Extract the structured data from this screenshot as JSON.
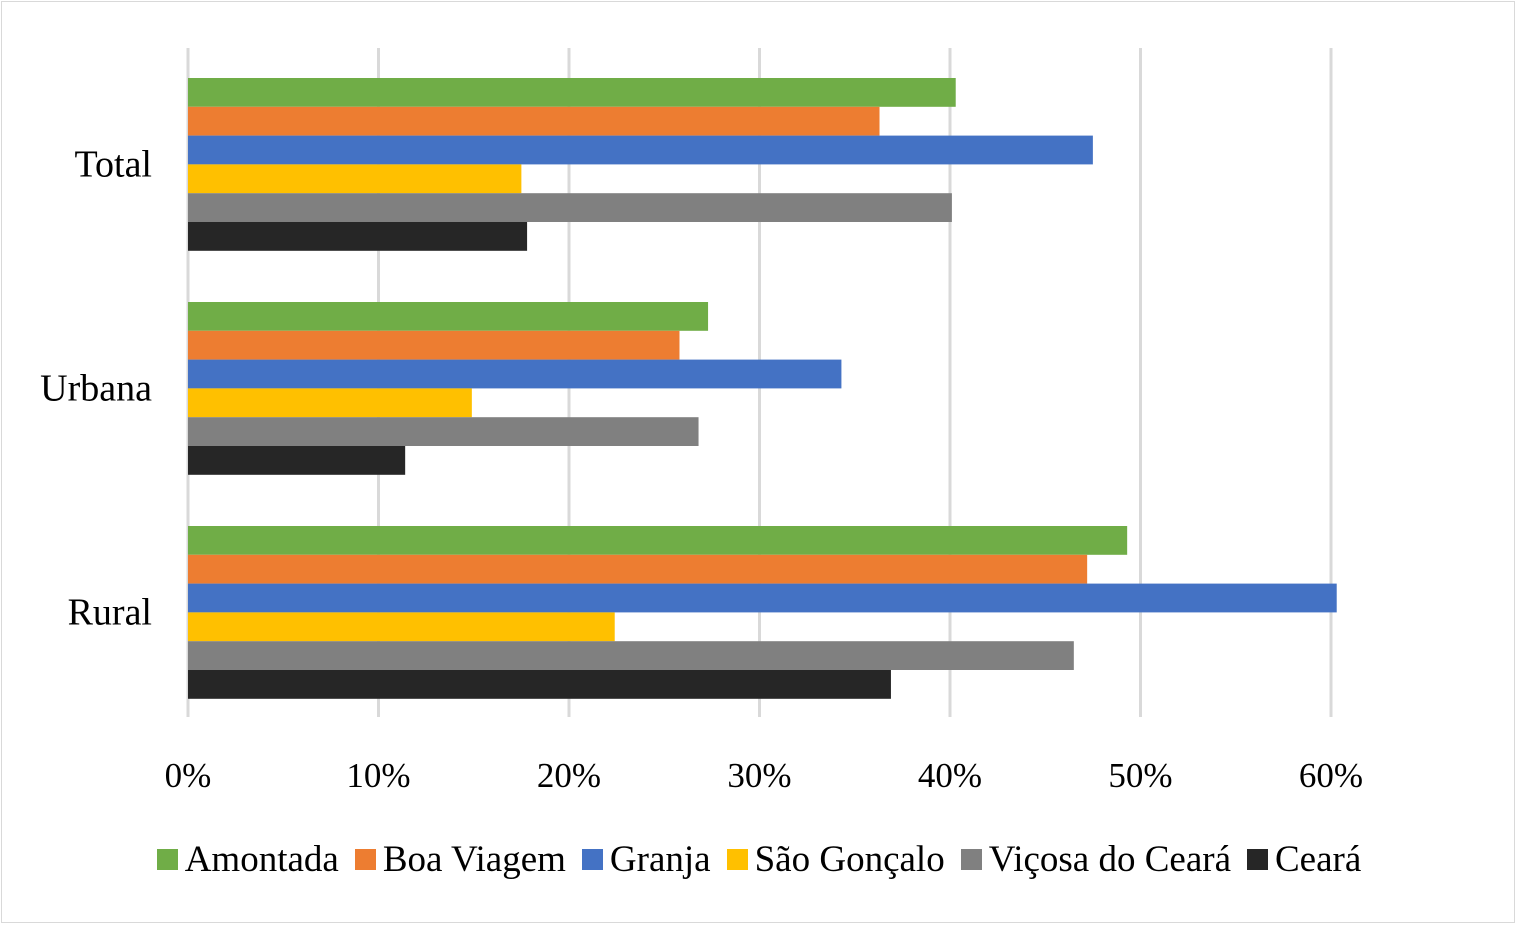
{
  "chart_data": {
    "type": "bar",
    "orientation": "horizontal",
    "title": "",
    "xlabel": "",
    "ylabel": "",
    "categories": [
      "Total",
      "Urbana",
      "Rural"
    ],
    "xlim": [
      0,
      0.6
    ],
    "x_ticks": [
      "0%",
      "10%",
      "20%",
      "30%",
      "40%",
      "50%",
      "60%"
    ],
    "grid": true,
    "legend_position": "bottom",
    "series": [
      {
        "name": "Amontada",
        "color": "#70ad47",
        "values": [
          0.403,
          0.273,
          0.493
        ]
      },
      {
        "name": "Boa Viagem",
        "color": "#ed7d31",
        "values": [
          0.363,
          0.258,
          0.472
        ]
      },
      {
        "name": "Granja",
        "color": "#4472c4",
        "values": [
          0.475,
          0.343,
          0.603
        ]
      },
      {
        "name": "São Gonçalo",
        "color": "#ffc000",
        "values": [
          0.175,
          0.149,
          0.224
        ]
      },
      {
        "name": "Viçosa do Ceará",
        "color": "#808080",
        "values": [
          0.401,
          0.268,
          0.465
        ]
      },
      {
        "name": "Ceará",
        "color": "#262626",
        "values": [
          0.178,
          0.114,
          0.369
        ]
      }
    ]
  }
}
